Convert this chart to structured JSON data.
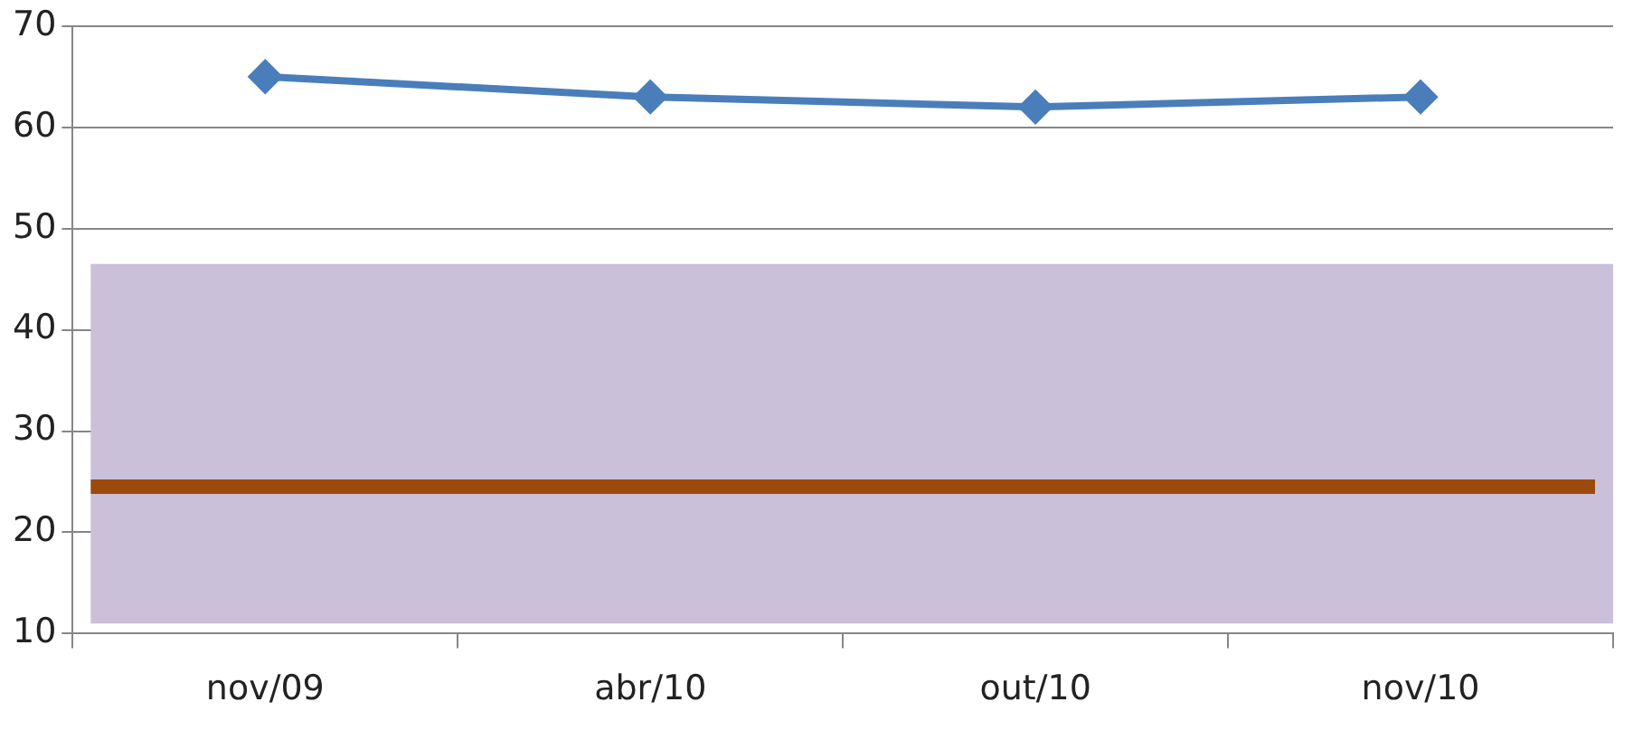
{
  "chart_data": {
    "type": "line",
    "categories": [
      "nov/09",
      "abr/10",
      "out/10",
      "nov/10"
    ],
    "series": [
      {
        "color": "#4a7ebb",
        "values": [
          65,
          63,
          62,
          63
        ]
      }
    ],
    "ylim": [
      10,
      70
    ],
    "yticks": [
      10,
      20,
      30,
      40,
      50,
      60,
      70
    ],
    "bands": [
      {
        "axis": "y",
        "from": 11,
        "to": 46.5,
        "color": "#cbc0da"
      }
    ],
    "ref_lines": [
      {
        "axis": "y",
        "value": 24.5,
        "color": "#9c4a0c"
      }
    ],
    "grid": "y",
    "legend": false,
    "marker": "diamond",
    "line_style": "solid"
  }
}
